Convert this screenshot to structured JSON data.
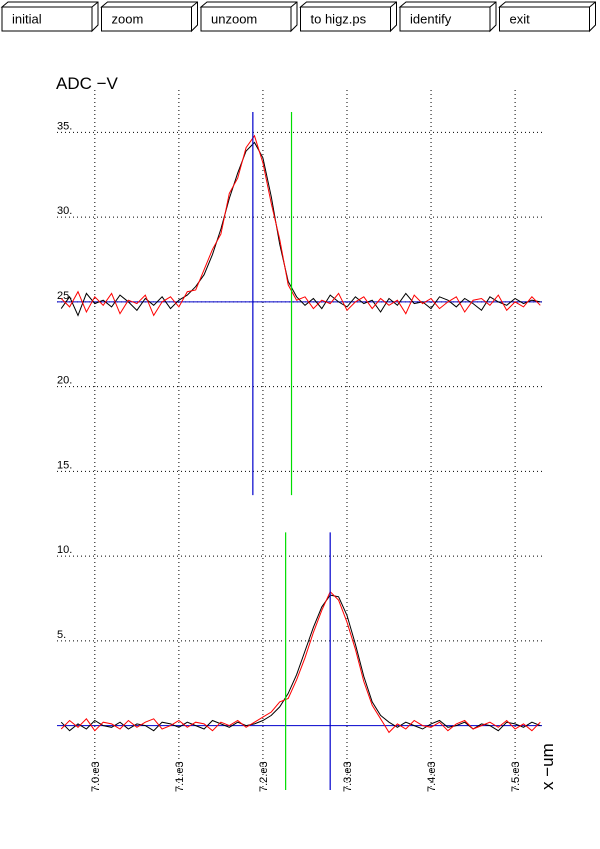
{
  "toolbar": {
    "buttons": [
      "initial",
      "zoom",
      "unzoom",
      "to higz.ps",
      "identify",
      "exit"
    ]
  },
  "chart_data": {
    "type": "line",
    "y_label": "ADC  −V",
    "x_label": "x  −um",
    "xlim": [
      6955,
      7532
    ],
    "ylim": [
      -3.8,
      37.5
    ],
    "xticks": [
      {
        "value": 7000,
        "label": "7.0.e3"
      },
      {
        "value": 7100,
        "label": "7.1.e3"
      },
      {
        "value": 7200,
        "label": "7.2.e3"
      },
      {
        "value": 7300,
        "label": "7.3.e3"
      },
      {
        "value": 7400,
        "label": "7.4.e3"
      },
      {
        "value": 7500,
        "label": "7.5.e3"
      }
    ],
    "yticks": [
      {
        "value": 5,
        "label": "5."
      },
      {
        "value": 10,
        "label": "10."
      },
      {
        "value": 15,
        "label": "15."
      },
      {
        "value": 20,
        "label": "20."
      },
      {
        "value": 25,
        "label": "25."
      },
      {
        "value": 30,
        "label": "30."
      },
      {
        "value": 35,
        "label": "35."
      }
    ],
    "grid": true,
    "x": [
      6960,
      6970,
      6980,
      6990,
      7000,
      7010,
      7020,
      7030,
      7040,
      7050,
      7060,
      7070,
      7080,
      7090,
      7100,
      7110,
      7120,
      7130,
      7140,
      7150,
      7160,
      7170,
      7180,
      7190,
      7200,
      7210,
      7220,
      7230,
      7240,
      7250,
      7260,
      7270,
      7280,
      7290,
      7300,
      7310,
      7320,
      7330,
      7340,
      7350,
      7360,
      7370,
      7380,
      7390,
      7400,
      7410,
      7420,
      7430,
      7440,
      7450,
      7460,
      7470,
      7480,
      7490,
      7500,
      7510,
      7520,
      7530
    ],
    "series": [
      {
        "color": "#000000",
        "values": [
          24.6,
          25.3,
          24.2,
          25.5,
          24.9,
          25.1,
          24.7,
          25.4,
          25.0,
          24.5,
          25.2,
          24.8,
          25.3,
          24.6,
          25.1,
          25.4,
          25.9,
          26.6,
          27.8,
          29.3,
          31.1,
          32.6,
          33.9,
          34.4,
          33.5,
          31.2,
          28.4,
          26.2,
          25.3,
          24.8,
          25.2,
          24.6,
          25.4,
          25.0,
          24.7,
          25.3,
          24.9,
          25.1,
          24.4,
          25.2,
          24.8,
          25.5,
          24.9,
          25.0,
          24.6,
          25.3,
          25.1,
          24.7,
          25.2,
          24.9,
          24.5,
          25.3,
          25.0,
          24.8,
          25.2,
          24.9,
          25.1,
          25.0
        ]
      },
      {
        "color": "#ff0000",
        "values": [
          25.2,
          24.7,
          25.6,
          24.4,
          25.3,
          24.8,
          25.5,
          24.3,
          25.1,
          24.9,
          25.4,
          24.2,
          25.0,
          25.3,
          24.7,
          25.6,
          25.7,
          26.9,
          28.1,
          29.0,
          31.4,
          32.3,
          34.1,
          34.8,
          33.2,
          30.8,
          28.7,
          26.0,
          25.1,
          25.3,
          24.6,
          25.1,
          24.9,
          25.5,
          24.5,
          25.0,
          25.3,
          24.6,
          25.2,
          24.8,
          25.1,
          24.3,
          25.4,
          24.9,
          25.2,
          24.6,
          25.0,
          25.3,
          24.4,
          25.1,
          25.2,
          24.8,
          25.4,
          24.5,
          25.0,
          24.7,
          25.3,
          24.8
        ]
      },
      {
        "color": "#000000",
        "values": [
          0.2,
          -0.3,
          0.1,
          -0.2,
          0.3,
          0.0,
          -0.1,
          0.2,
          -0.2,
          0.1,
          0.0,
          -0.3,
          0.2,
          0.1,
          -0.1,
          0.2,
          0.0,
          -0.2,
          0.3,
          0.1,
          -0.1,
          0.2,
          0.0,
          0.1,
          0.3,
          0.6,
          1.1,
          1.9,
          3.0,
          4.4,
          5.8,
          7.0,
          7.7,
          7.6,
          6.5,
          4.8,
          2.9,
          1.4,
          0.6,
          0.2,
          -0.1,
          0.2,
          0.0,
          -0.2,
          0.1,
          0.3,
          -0.1,
          0.0,
          0.2,
          -0.2,
          0.1,
          0.0,
          -0.3,
          0.2,
          0.1,
          -0.1,
          0.2,
          0.0
        ]
      },
      {
        "color": "#ff0000",
        "values": [
          -0.2,
          0.3,
          -0.1,
          0.4,
          -0.3,
          0.2,
          0.1,
          -0.2,
          0.3,
          -0.1,
          0.2,
          0.4,
          -0.2,
          0.0,
          0.3,
          -0.1,
          0.2,
          0.1,
          -0.3,
          0.2,
          0.0,
          0.3,
          -0.1,
          0.2,
          0.5,
          0.8,
          1.4,
          1.6,
          2.7,
          4.0,
          5.5,
          6.8,
          7.9,
          7.4,
          6.1,
          4.5,
          2.6,
          1.2,
          0.4,
          -0.4,
          0.1,
          -0.2,
          0.3,
          0.0,
          -0.1,
          0.2,
          -0.3,
          0.1,
          0.3,
          -0.2,
          0.0,
          0.2,
          -0.1,
          0.3,
          -0.2,
          0.1,
          -0.3,
          0.2
        ]
      }
    ],
    "vlines": [
      {
        "x": 7188,
        "y": [
          13.6,
          36.2
        ],
        "color": "#0000cc"
      },
      {
        "x": 7234,
        "y": [
          13.6,
          36.2
        ],
        "color": "#00dd00"
      },
      {
        "x": 7227,
        "y": [
          -3.8,
          11.4
        ],
        "color": "#00dd00"
      },
      {
        "x": 7280,
        "y": [
          -3.8,
          11.4
        ],
        "color": "#0000cc"
      }
    ],
    "hlines": [
      {
        "y": 25,
        "color": "#0000cc"
      },
      {
        "y": 0,
        "color": "#0000cc"
      }
    ]
  }
}
